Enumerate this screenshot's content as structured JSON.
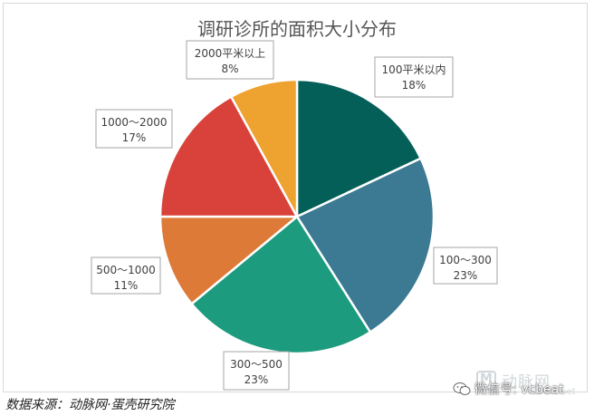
{
  "chart_data": {
    "type": "pie",
    "title": "调研诊所的面积大小分布",
    "start_angle_deg": 0,
    "direction": "clockwise",
    "slices": [
      {
        "label": "100平米以内",
        "value": 18,
        "value_label": "18%",
        "color": "#035F58"
      },
      {
        "label": "100～300",
        "value": 23,
        "value_label": "23%",
        "color": "#3B7A92"
      },
      {
        "label": "300～500",
        "value": 23,
        "value_label": "23%",
        "color": "#1D9B7F"
      },
      {
        "label": "500～1000",
        "value": 11,
        "value_label": "11%",
        "color": "#DE7A38"
      },
      {
        "label": "1000～2000",
        "value": 17,
        "value_label": "17%",
        "color": "#D9423A"
      },
      {
        "label": "2000平米以上",
        "value": 8,
        "value_label": "8%",
        "color": "#EEA22F"
      }
    ]
  },
  "footer": {
    "source": "数据来源：动脉网·蛋壳研究院"
  },
  "watermark": {
    "brand_cn": "动脉网",
    "brand_en": "vcbeat.net",
    "wechat_label": "微信号: vcbeat",
    "wechat_icon": "wechat-icon"
  }
}
